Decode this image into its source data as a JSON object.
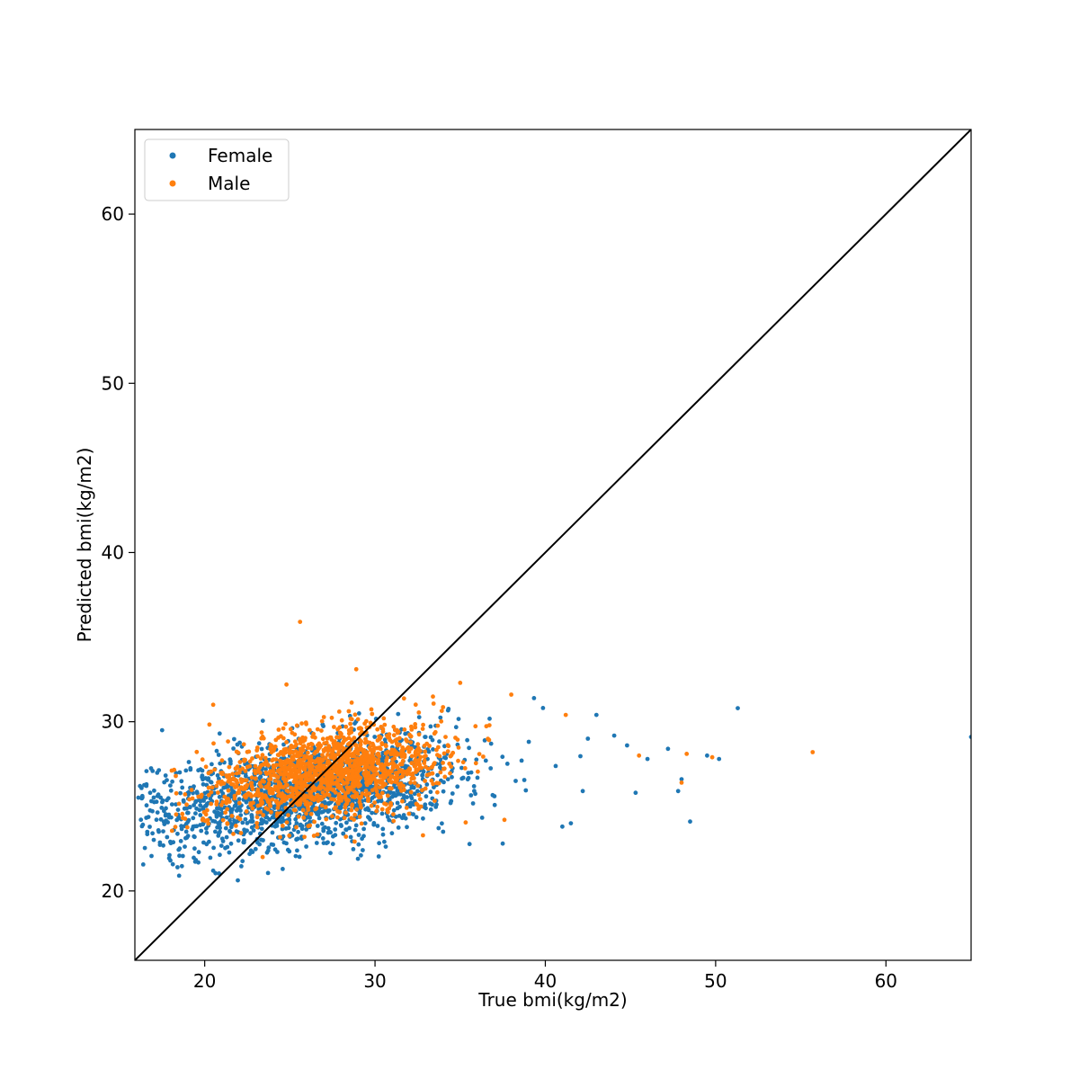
{
  "chart_data": {
    "type": "scatter",
    "xlabel": "True bmi(kg/m2)",
    "ylabel": "Predicted bmi(kg/m2)",
    "xlim": [
      15.9,
      65
    ],
    "ylim": [
      15.9,
      65
    ],
    "xticks": [
      20,
      30,
      40,
      50,
      60
    ],
    "yticks": [
      20,
      30,
      40,
      50,
      60
    ],
    "grid": false,
    "legend_position": "top-left",
    "reference_line": {
      "from": [
        15.9,
        15.9
      ],
      "to": [
        65,
        65
      ],
      "color": "#000000"
    },
    "series": [
      {
        "name": "Female",
        "color": "#1f77b4",
        "cluster": {
          "x_mean": 26.0,
          "x_sd": 4.6,
          "y_mean": 25.9,
          "y_sd": 1.55,
          "slope": 0.14,
          "x_min": 16.0,
          "x_max": 48.0,
          "count": 1700
        },
        "outliers": [
          [
            65.0,
            29.1
          ],
          [
            51.3,
            30.8
          ],
          [
            48.5,
            24.1
          ],
          [
            48.0,
            26.6
          ],
          [
            47.2,
            28.4
          ],
          [
            46.0,
            27.8
          ],
          [
            45.3,
            25.8
          ],
          [
            44.8,
            28.6
          ],
          [
            43.0,
            30.4
          ],
          [
            42.5,
            29.0
          ],
          [
            42.2,
            25.9
          ],
          [
            41.5,
            24.0
          ],
          [
            18.5,
            20.9
          ],
          [
            18.4,
            21.4
          ],
          [
            17.5,
            29.5
          ],
          [
            16.2,
            26.2
          ],
          [
            16.8,
            25.8
          ],
          [
            29.0,
            21.9
          ],
          [
            34.0,
            23.5
          ],
          [
            37.5,
            22.8
          ],
          [
            41.0,
            23.8
          ],
          [
            20.5,
            21.2
          ],
          [
            47.8,
            25.9
          ],
          [
            49.5,
            28.0
          ],
          [
            50.2,
            27.8
          ]
        ]
      },
      {
        "name": "Male",
        "color": "#ff7f0e",
        "cluster": {
          "x_mean": 27.2,
          "x_sd": 3.4,
          "y_mean": 27.0,
          "y_sd": 1.3,
          "slope": 0.13,
          "x_min": 18.0,
          "x_max": 42.0,
          "count": 1500
        },
        "outliers": [
          [
            55.7,
            28.2
          ],
          [
            49.8,
            27.9
          ],
          [
            48.3,
            28.1
          ],
          [
            48.0,
            26.4
          ],
          [
            45.5,
            28.0
          ],
          [
            41.2,
            30.4
          ],
          [
            38.0,
            31.6
          ],
          [
            35.0,
            32.3
          ],
          [
            28.9,
            33.1
          ],
          [
            25.6,
            35.9
          ],
          [
            24.8,
            32.2
          ],
          [
            20.5,
            31.0
          ],
          [
            37.6,
            24.2
          ],
          [
            23.4,
            22.0
          ],
          [
            27.9,
            30.6
          ]
        ]
      }
    ]
  }
}
